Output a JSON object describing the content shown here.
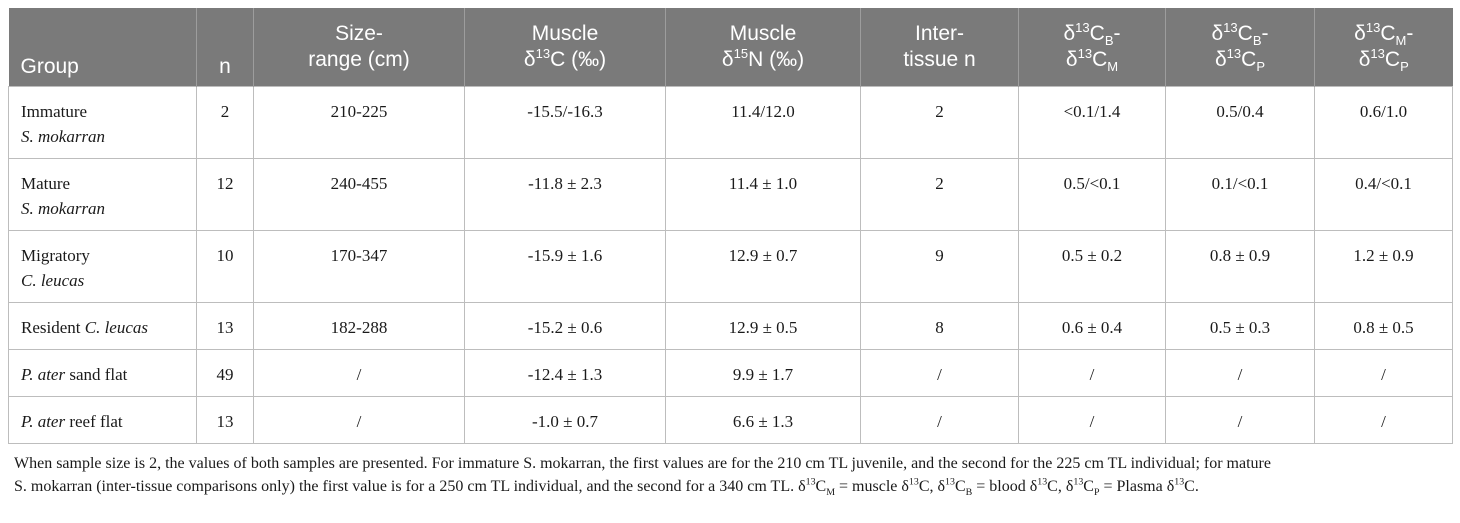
{
  "headers": {
    "group": "Group",
    "n": "n",
    "size_range": [
      "Size-",
      "range (cm)"
    ],
    "muscle_c_top": "Muscle",
    "muscle_c_delta": "δ",
    "muscle_c_sup": "13",
    "muscle_c_tail": "C (‰)",
    "muscle_n_top": "Muscle",
    "muscle_n_delta": "δ",
    "muscle_n_sup": "15",
    "muscle_n_tail": "N (‰)",
    "inter_tissue": [
      "Inter-",
      "tissue n"
    ],
    "d13": "δ",
    "sup13": "13",
    "c_letter": "C",
    "dash": "-",
    "sub_b": "B",
    "sub_m": "M",
    "sub_p": "P"
  },
  "rows": [
    {
      "group_line1": "Immature",
      "group_line2": "S. mokarran",
      "group_suffix": "",
      "n": "2",
      "size": "210-225",
      "c13": "-15.5/-16.3",
      "n15": "11.4/12.0",
      "inter_n": "2",
      "bm": "<0.1/1.4",
      "bp": "0.5/0.4",
      "mp": "0.6/1.0"
    },
    {
      "group_line1": "Mature",
      "group_line2": "S. mokarran",
      "group_suffix": "",
      "n": "12",
      "size": "240-455",
      "c13": "-11.8 ± 2.3",
      "n15": "11.4 ± 1.0",
      "inter_n": "2",
      "bm": "0.5/<0.1",
      "bp": "0.1/<0.1",
      "mp": "0.4/<0.1"
    },
    {
      "group_line1": "Migratory",
      "group_line2": "C. leucas",
      "group_suffix": "",
      "n": "10",
      "size": "170-347",
      "c13": "-15.9 ± 1.6",
      "n15": "12.9 ± 0.7",
      "inter_n": "9",
      "bm": "0.5 ± 0.2",
      "bp": "0.8 ± 0.9",
      "mp": "1.2 ± 0.9"
    },
    {
      "group_line1": "Resident ",
      "group_line2": "C. leucas",
      "group_suffix": "",
      "n": "13",
      "size": "182-288",
      "c13": "-15.2 ± 0.6",
      "n15": "12.9 ± 0.5",
      "inter_n": "8",
      "bm": "0.6 ± 0.4",
      "bp": "0.5 ± 0.3",
      "mp": "0.8 ± 0.5"
    },
    {
      "group_line1": "",
      "group_line2": "P. ater",
      "group_suffix": " sand flat",
      "n": "49",
      "size": "/",
      "c13": "-12.4 ± 1.3",
      "n15": "9.9 ± 1.7",
      "inter_n": "/",
      "bm": "/",
      "bp": "/",
      "mp": "/"
    },
    {
      "group_line1": "",
      "group_line2": "P. ater",
      "group_suffix": " reef flat",
      "n": "13",
      "size": "/",
      "c13": "-1.0 ± 0.7",
      "n15": "6.6 ± 1.3",
      "inter_n": "/",
      "bm": "/",
      "bp": "/",
      "mp": "/"
    }
  ],
  "footnote": {
    "line1": "When sample size is 2, the values of both samples are presented. For immature S. mokarran, the first values are for the 210 cm TL juvenile, and the second for the 225 cm TL individual; for mature",
    "line2_text": "S. mokarran (inter-tissue comparisons only) the first value is for a 250 cm TL individual, and the second for a 340 cm TL. ",
    "d": "δ",
    "s13": "13",
    "c": "C",
    "sub_m": "M",
    "sub_b": "B",
    "sub_p": "P",
    "eq_muscle": " = muscle ",
    "eq_blood": " = blood ",
    "eq_plasma": " = Plasma ",
    "comma": ", ",
    "period": "."
  }
}
